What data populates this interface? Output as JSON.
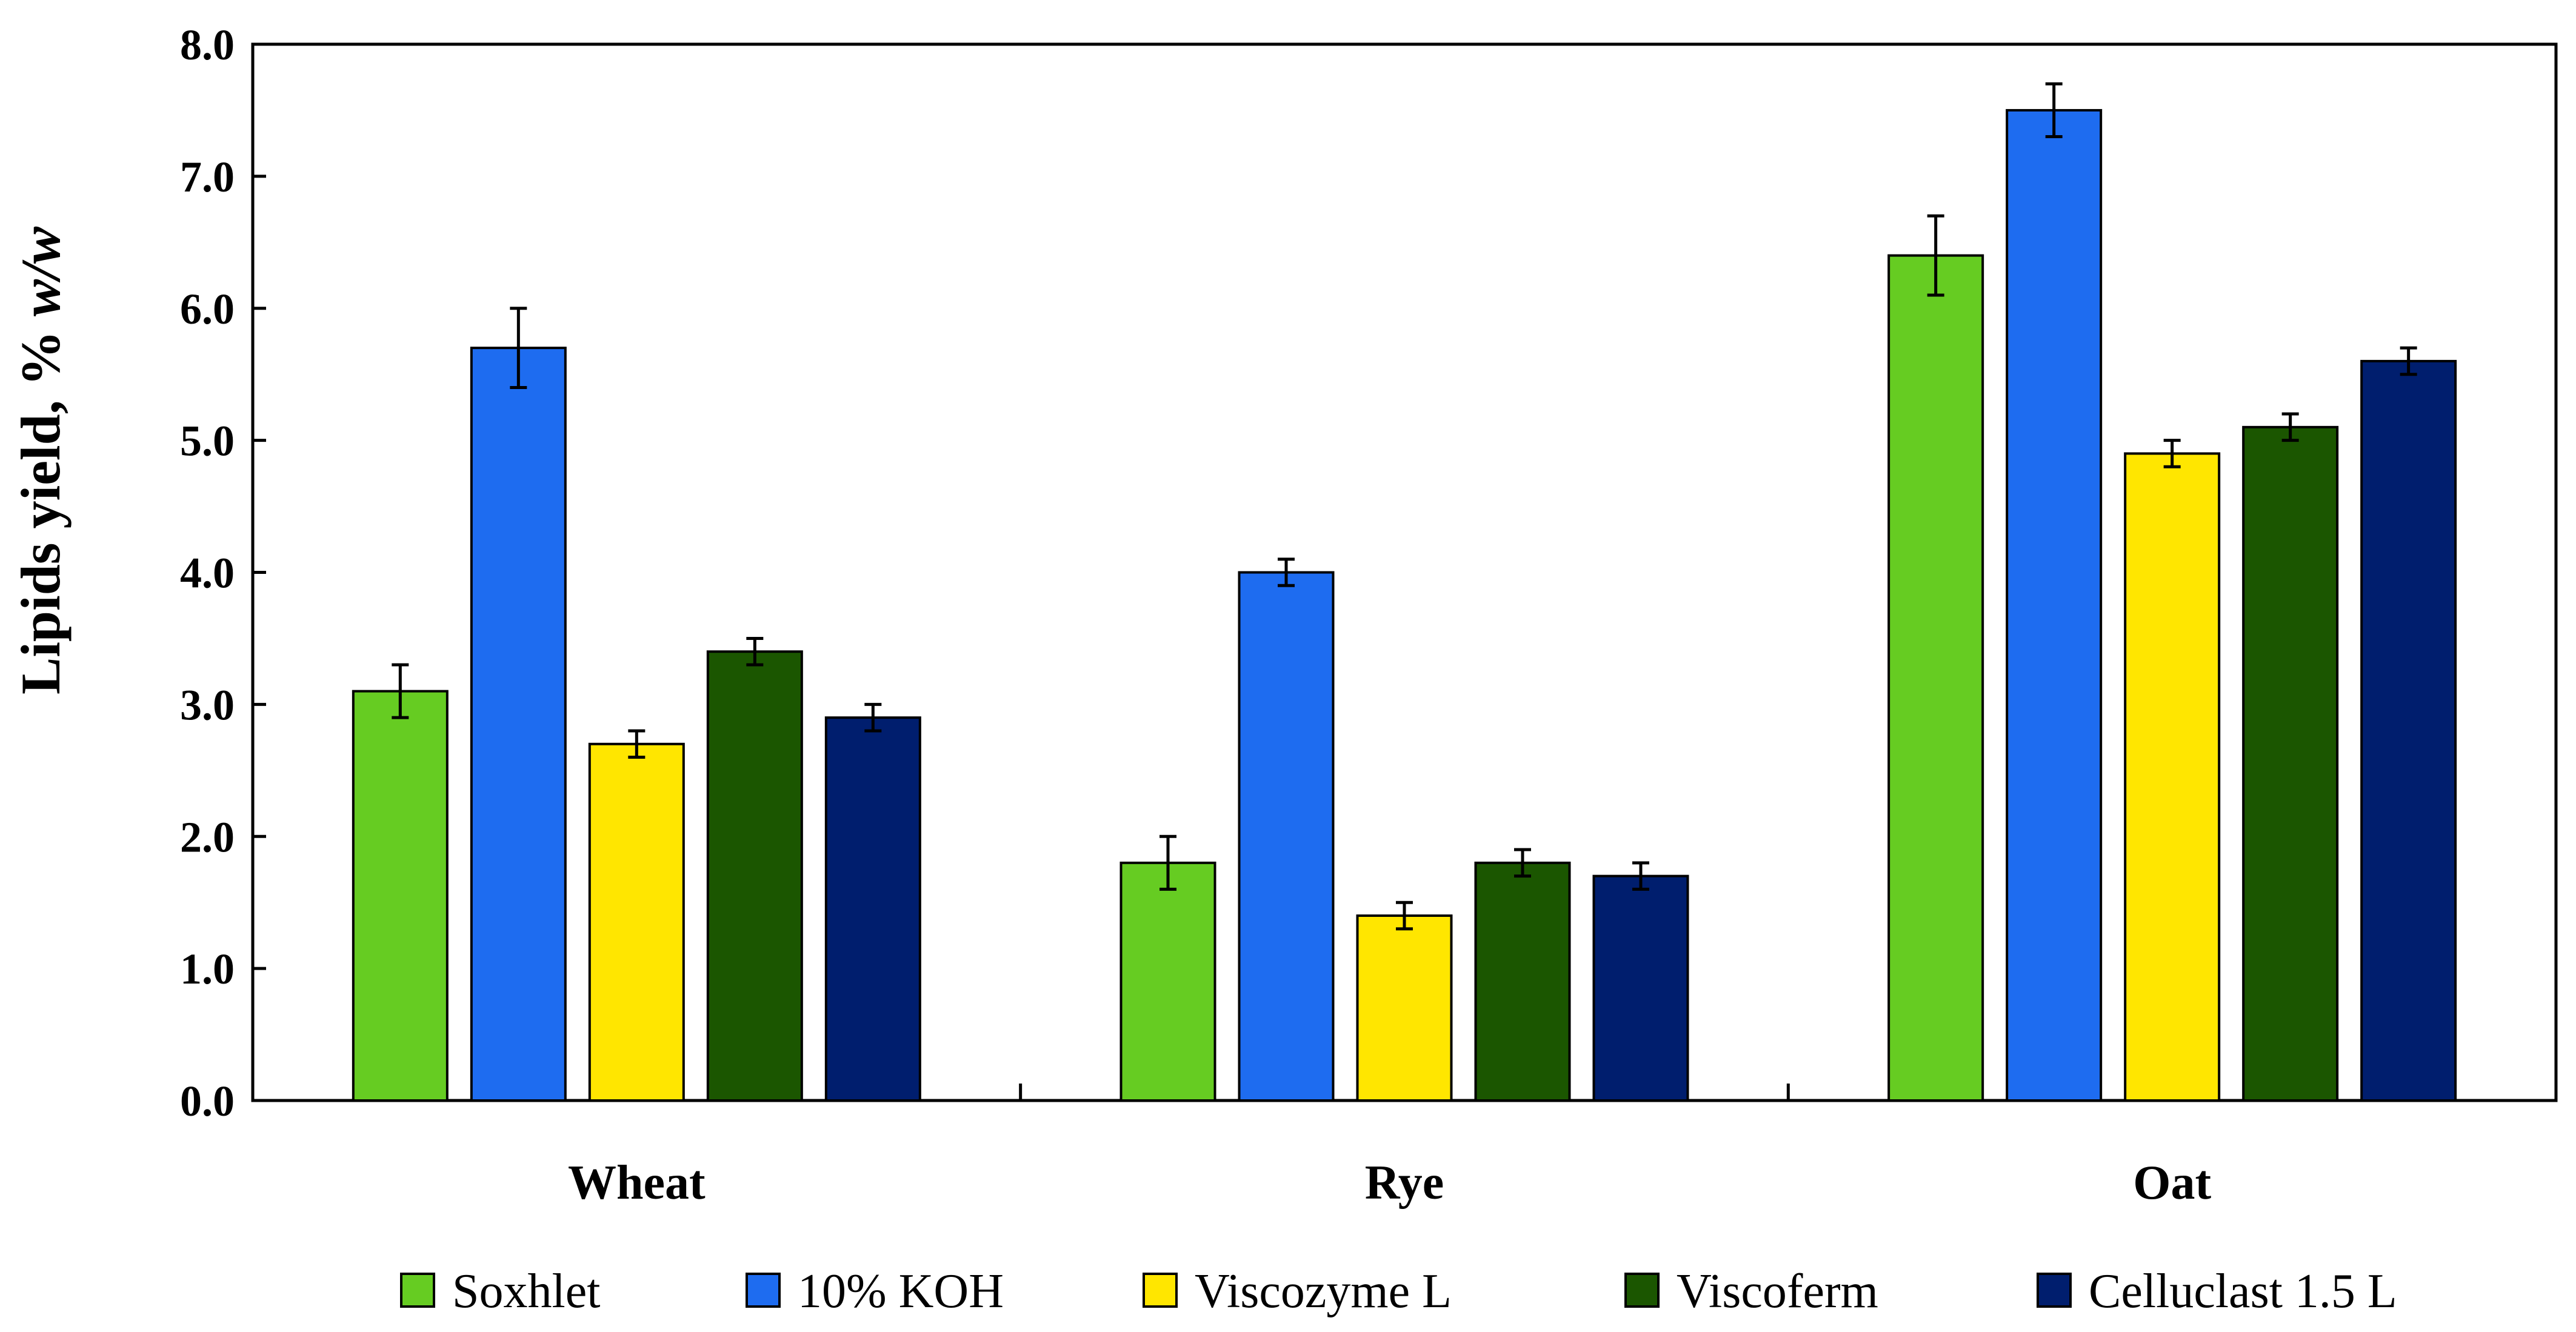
{
  "chart_data": {
    "type": "bar",
    "title": "",
    "xlabel": "",
    "ylabel": "Lipids yield, % w/w",
    "ylabel_parts": {
      "main": "Lipids yield, % ",
      "italic": "w/w"
    },
    "ylim": [
      0,
      8
    ],
    "yticks": [
      "0.0",
      "1.0",
      "2.0",
      "3.0",
      "4.0",
      "5.0",
      "6.0",
      "7.0",
      "8.0"
    ],
    "grid": false,
    "legend_position": "bottom",
    "categories": [
      "Wheat",
      "Rye",
      "Oat"
    ],
    "series": [
      {
        "name": "Soxhlet",
        "color": "#66CC22",
        "values": [
          3.1,
          1.8,
          6.4
        ],
        "errors": [
          0.2,
          0.2,
          0.3
        ]
      },
      {
        "name": "10% KOH",
        "color": "#1E6CF0",
        "values": [
          5.7,
          4.0,
          7.5
        ],
        "errors": [
          0.3,
          0.1,
          0.2
        ]
      },
      {
        "name": "Viscozyme L",
        "color": "#FFE600",
        "values": [
          2.7,
          1.4,
          4.9
        ],
        "errors": [
          0.1,
          0.1,
          0.1
        ]
      },
      {
        "name": "Viscoferm",
        "color": "#1B5600",
        "values": [
          3.4,
          1.8,
          5.1
        ],
        "errors": [
          0.1,
          0.1,
          0.1
        ]
      },
      {
        "name": "Celluclast 1.5 L",
        "color": "#001E6E",
        "values": [
          2.9,
          1.7,
          5.6
        ],
        "errors": [
          0.1,
          0.1,
          0.1
        ]
      }
    ]
  }
}
